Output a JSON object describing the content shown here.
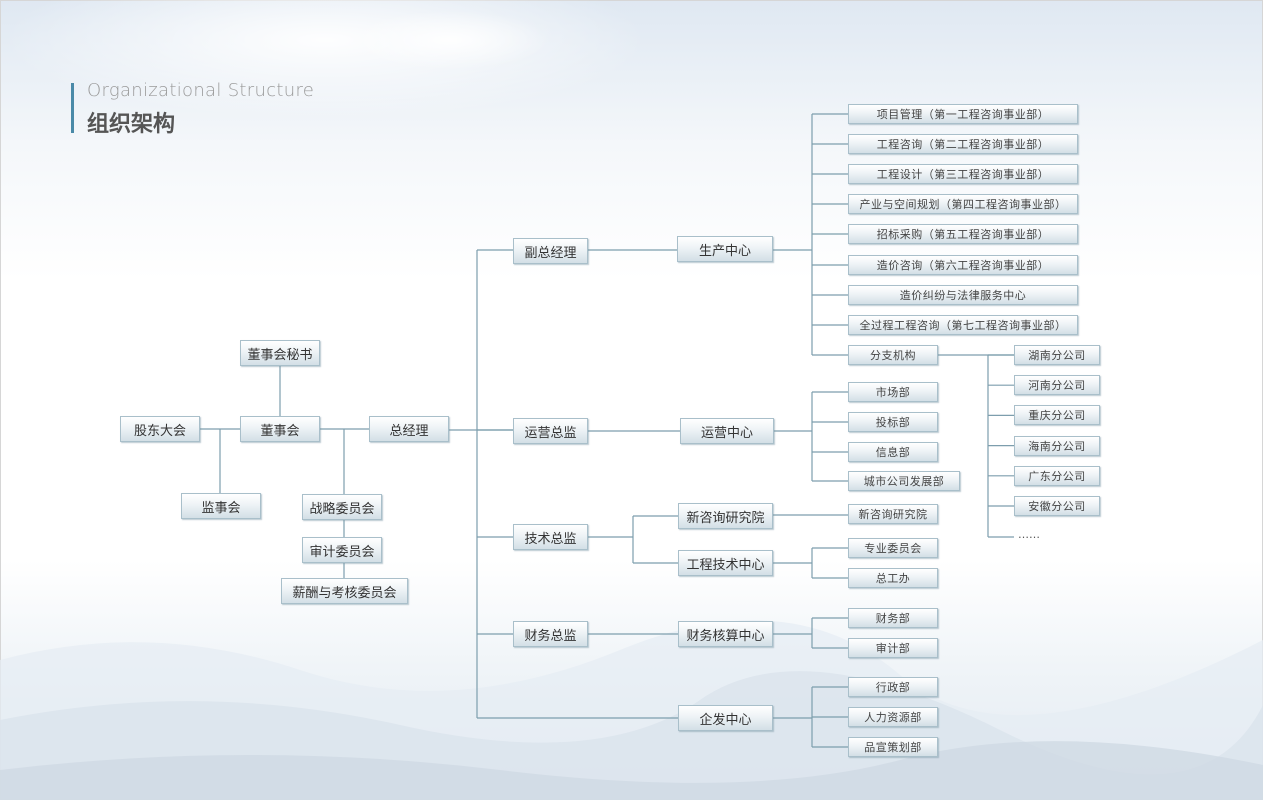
{
  "header": {
    "title_en": "Organizational Structure",
    "title_cn": "组织架构"
  },
  "accent_color": "#4a8aa8",
  "line_color": "#7d9ead",
  "nodes": {
    "board_secretary": "董事会秘书",
    "shareholders_meeting": "股东大会",
    "board": "董事会",
    "general_manager": "总经理",
    "supervisory_board": "监事会",
    "strategy_committee": "战略委员会",
    "audit_committee": "审计委员会",
    "compensation_committee": "薪酬与考核委员会",
    "deputy_gm": "副总经理",
    "operations_director": "运营总监",
    "technical_director": "技术总监",
    "finance_director": "财务总监",
    "production_center": "生产中心",
    "operations_center": "运营中心",
    "research_institute": "新咨询研究院",
    "engineering_tech_center": "工程技术中心",
    "finance_center": "财务核算中心",
    "enterprise_dev_center": "企发中心"
  },
  "production_units": [
    "项目管理（第一工程咨询事业部）",
    "工程咨询（第二工程咨询事业部）",
    "工程设计（第三工程咨询事业部）",
    "产业与空间规划（第四工程咨询事业部）",
    "招标采购（第五工程咨询事业部）",
    "造价咨询（第六工程咨询事业部）",
    "造价纠纷与法律服务中心",
    "全过程工程咨询（第七工程咨询事业部）",
    "分支机构"
  ],
  "branches": [
    "湖南分公司",
    "河南分公司",
    "重庆分公司",
    "海南分公司",
    "广东分公司",
    "安徽分公司"
  ],
  "branches_more": "……",
  "operations_units": [
    "市场部",
    "投标部",
    "信息部",
    "城市公司发展部"
  ],
  "research_units": [
    "新咨询研究院"
  ],
  "engineering_units": [
    "专业委员会",
    "总工办"
  ],
  "finance_units": [
    "财务部",
    "审计部"
  ],
  "enterprise_units": [
    "行政部",
    "人力资源部",
    "品宣策划部"
  ]
}
